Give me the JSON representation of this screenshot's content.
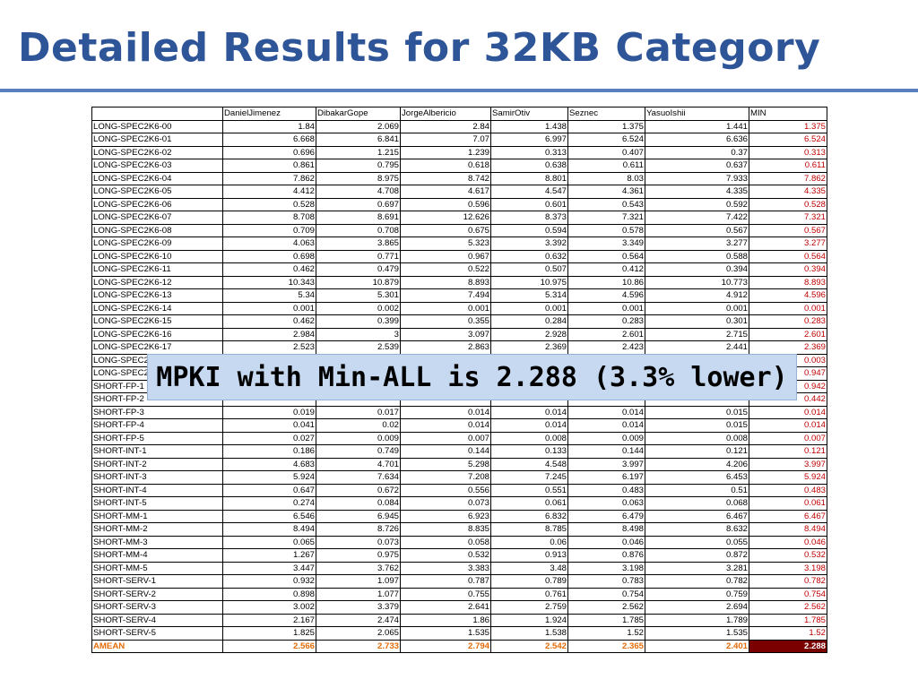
{
  "slide": {
    "title": "Detailed Results for 32KB Category",
    "callout": "MPKI with Min-ALL is 2.288 (3.3% lower)"
  },
  "colors": {
    "title": "#2e5597",
    "rule": "#5b7fbd",
    "min_column_text": "#c00000",
    "amean_text": "#e36c09",
    "amean_min_fill": "#7a0000",
    "callout_fill": "#c6d9f1"
  },
  "table": {
    "headers": [
      "",
      "DanielJimenez",
      "DibakarGope",
      "JorgeAlbericio",
      "SamirOtiv",
      "Seznec",
      "YasuoIshii",
      "MIN"
    ],
    "rows": [
      [
        "LONG-SPEC2K6-00",
        "1.84",
        "2.069",
        "2.84",
        "1.438",
        "1.375",
        "1.441",
        "1.375"
      ],
      [
        "LONG-SPEC2K6-01",
        "6.668",
        "6.841",
        "7.07",
        "6.997",
        "6.524",
        "6.636",
        "6.524"
      ],
      [
        "LONG-SPEC2K6-02",
        "0.696",
        "1.215",
        "1.239",
        "0.313",
        "0.407",
        "0.37",
        "0.313"
      ],
      [
        "LONG-SPEC2K6-03",
        "0.861",
        "0.795",
        "0.618",
        "0.638",
        "0.611",
        "0.637",
        "0.611"
      ],
      [
        "LONG-SPEC2K6-04",
        "7.862",
        "8.975",
        "8.742",
        "8.801",
        "8.03",
        "7.933",
        "7.862"
      ],
      [
        "LONG-SPEC2K6-05",
        "4.412",
        "4.708",
        "4.617",
        "4.547",
        "4.361",
        "4.335",
        "4.335"
      ],
      [
        "LONG-SPEC2K6-06",
        "0.528",
        "0.697",
        "0.596",
        "0.601",
        "0.543",
        "0.592",
        "0.528"
      ],
      [
        "LONG-SPEC2K6-07",
        "8.708",
        "8.691",
        "12.626",
        "8.373",
        "7.321",
        "7.422",
        "7.321"
      ],
      [
        "LONG-SPEC2K6-08",
        "0.709",
        "0.708",
        "0.675",
        "0.594",
        "0.578",
        "0.567",
        "0.567"
      ],
      [
        "LONG-SPEC2K6-09",
        "4.063",
        "3.865",
        "5.323",
        "3.392",
        "3.349",
        "3.277",
        "3.277"
      ],
      [
        "LONG-SPEC2K6-10",
        "0.698",
        "0.771",
        "0.967",
        "0.632",
        "0.564",
        "0.588",
        "0.564"
      ],
      [
        "LONG-SPEC2K6-11",
        "0.462",
        "0.479",
        "0.522",
        "0.507",
        "0.412",
        "0.394",
        "0.394"
      ],
      [
        "LONG-SPEC2K6-12",
        "10.343",
        "10.879",
        "8.893",
        "10.975",
        "10.86",
        "10.773",
        "8.893"
      ],
      [
        "LONG-SPEC2K6-13",
        "5.34",
        "5.301",
        "7.494",
        "5.314",
        "4.596",
        "4.912",
        "4.596"
      ],
      [
        "LONG-SPEC2K6-14",
        "0.001",
        "0.002",
        "0.001",
        "0.001",
        "0.001",
        "0.001",
        "0.001"
      ],
      [
        "LONG-SPEC2K6-15",
        "0.462",
        "0.399",
        "0.355",
        "0.284",
        "0.283",
        "0.301",
        "0.283"
      ],
      [
        "LONG-SPEC2K6-16",
        "2.984",
        "3",
        "3.097",
        "2.928",
        "2.601",
        "2.715",
        "2.601"
      ],
      [
        "LONG-SPEC2K6-17",
        "2.523",
        "2.539",
        "2.863",
        "2.369",
        "2.423",
        "2.441",
        "2.369"
      ],
      [
        "LONG-SPEC2",
        "",
        "",
        "",
        "",
        "",
        "",
        "0.003"
      ],
      [
        "LONG-SPEC2",
        "",
        "",
        "",
        "",
        "",
        "",
        "0.947"
      ],
      [
        "SHORT-FP-1",
        "",
        "",
        "",
        "",
        "",
        "",
        "0.942"
      ],
      [
        "SHORT-FP-2",
        "",
        "",
        "",
        "",
        "",
        "",
        "0.442"
      ],
      [
        "SHORT-FP-3",
        "0.019",
        "0.017",
        "0.014",
        "0.014",
        "0.014",
        "0.015",
        "0.014"
      ],
      [
        "SHORT-FP-4",
        "0.041",
        "0.02",
        "0.014",
        "0.014",
        "0.014",
        "0.015",
        "0.014"
      ],
      [
        "SHORT-FP-5",
        "0.027",
        "0.009",
        "0.007",
        "0.008",
        "0.009",
        "0.008",
        "0.007"
      ],
      [
        "SHORT-INT-1",
        "0.186",
        "0.749",
        "0.144",
        "0.133",
        "0.144",
        "0.121",
        "0.121"
      ],
      [
        "SHORT-INT-2",
        "4.683",
        "4.701",
        "5.298",
        "4.548",
        "3.997",
        "4.206",
        "3.997"
      ],
      [
        "SHORT-INT-3",
        "5.924",
        "7.634",
        "7.208",
        "7.245",
        "6.197",
        "6.453",
        "5.924"
      ],
      [
        "SHORT-INT-4",
        "0.647",
        "0.672",
        "0.556",
        "0.551",
        "0.483",
        "0.51",
        "0.483"
      ],
      [
        "SHORT-INT-5",
        "0.274",
        "0.084",
        "0.073",
        "0.061",
        "0.063",
        "0.068",
        "0.061"
      ],
      [
        "SHORT-MM-1",
        "6.546",
        "6.945",
        "6.923",
        "6.832",
        "6.479",
        "6.467",
        "6.467"
      ],
      [
        "SHORT-MM-2",
        "8.494",
        "8.726",
        "8.835",
        "8.785",
        "8.498",
        "8.632",
        "8.494"
      ],
      [
        "SHORT-MM-3",
        "0.065",
        "0.073",
        "0.058",
        "0.06",
        "0.046",
        "0.055",
        "0.046"
      ],
      [
        "SHORT-MM-4",
        "1.267",
        "0.975",
        "0.532",
        "0.913",
        "0.876",
        "0.872",
        "0.532"
      ],
      [
        "SHORT-MM-5",
        "3.447",
        "3.762",
        "3.383",
        "3.48",
        "3.198",
        "3.281",
        "3.198"
      ],
      [
        "SHORT-SERV-1",
        "0.932",
        "1.097",
        "0.787",
        "0.789",
        "0.783",
        "0.782",
        "0.782"
      ],
      [
        "SHORT-SERV-2",
        "0.898",
        "1.077",
        "0.755",
        "0.761",
        "0.754",
        "0.759",
        "0.754"
      ],
      [
        "SHORT-SERV-3",
        "3.002",
        "3.379",
        "2.641",
        "2.759",
        "2.562",
        "2.694",
        "2.562"
      ],
      [
        "SHORT-SERV-4",
        "2.167",
        "2.474",
        "1.86",
        "1.924",
        "1.785",
        "1.789",
        "1.785"
      ],
      [
        "SHORT-SERV-5",
        "1.825",
        "2.065",
        "1.535",
        "1.538",
        "1.52",
        "1.535",
        "1.52"
      ]
    ],
    "footer": [
      "AMEAN",
      "2.566",
      "2.733",
      "2.794",
      "2.542",
      "2.365",
      "2.401",
      "2.288"
    ]
  }
}
